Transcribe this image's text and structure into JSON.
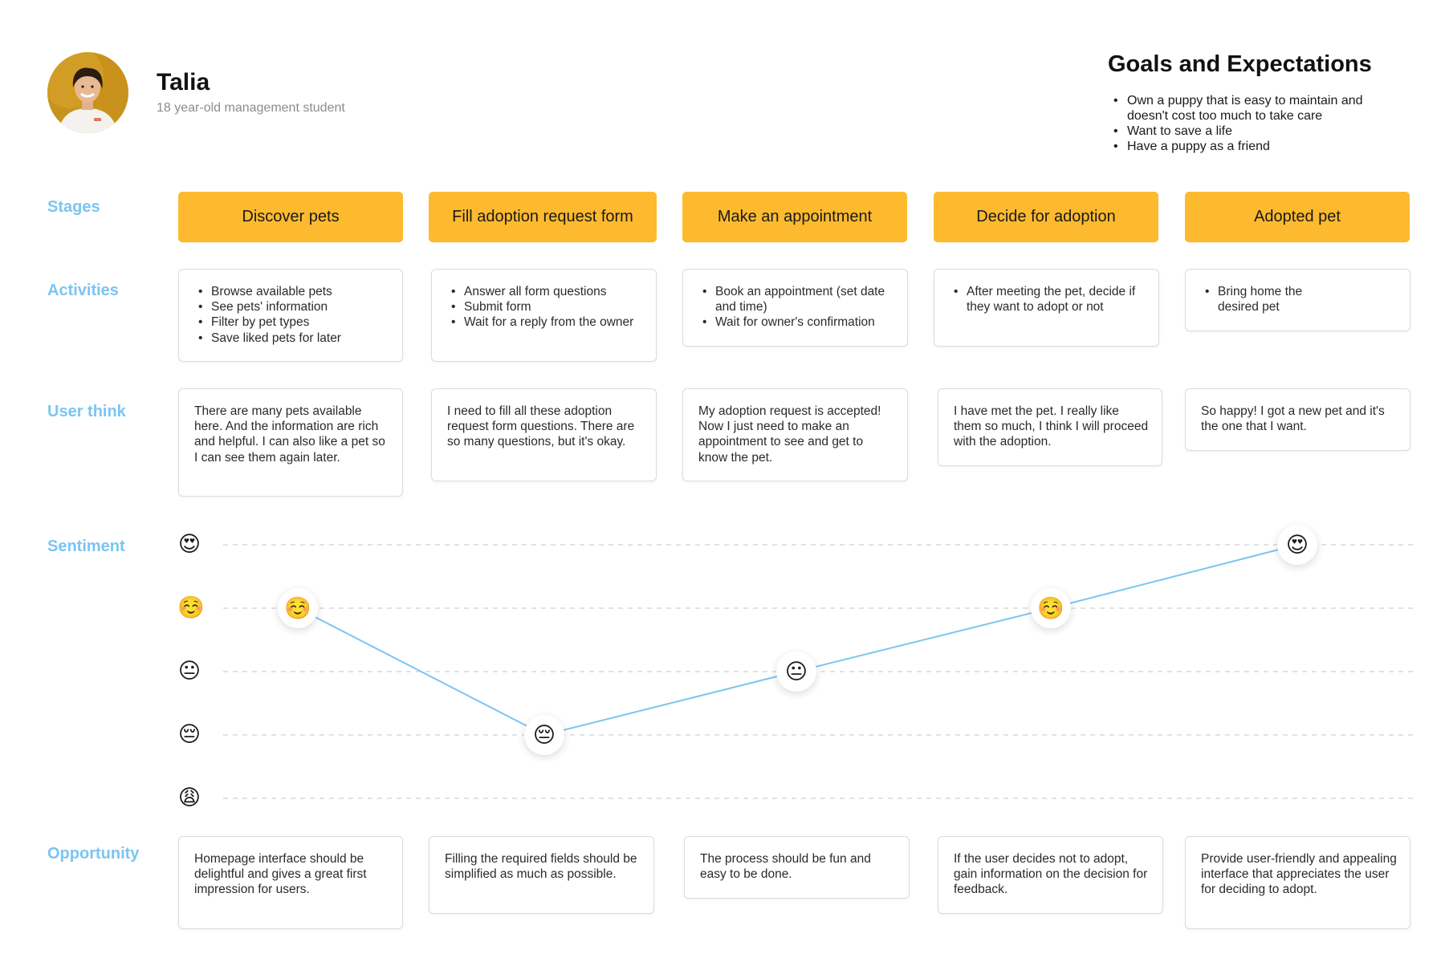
{
  "persona": {
    "name": "Talia",
    "description": "18 year-old management student",
    "avatar": "avatar-photo"
  },
  "goals": {
    "title": "Goals and Expectations",
    "items": [
      "Own a puppy that is easy to maintain and doesn't cost too much to take care",
      "Want to save a life",
      "Have a puppy as a friend"
    ]
  },
  "row_labels": {
    "stages": "Stages",
    "activities": "Activities",
    "user_think": "User think",
    "sentiment": "Sentiment",
    "opportunity": "Opportunity"
  },
  "stages": [
    "Discover pets",
    "Fill adoption request form",
    "Make an appointment",
    "Decide for adoption",
    "Adopted pet"
  ],
  "activities": [
    [
      "Browse available pets",
      "See pets' information",
      "Filter by pet types",
      "Save liked pets for later"
    ],
    [
      "Answer all form questions",
      "Submit form",
      "Wait for a reply from the owner"
    ],
    [
      "Book an appointment (set date and time)",
      "Wait for owner's confirmation"
    ],
    [
      "After meeting the pet, decide if they want to adopt or not"
    ],
    [
      "Bring home the desired pet"
    ]
  ],
  "user_think": [
    "There are many pets available here. And the information are rich and helpful. I can also like a pet so I can see them again later.",
    "I need to fill all these adoption request form questions. There are so many questions, but it's okay.",
    "My adoption request is accepted! Now I just need to make an appointment to see and get to know the pet.",
    "I have met the pet. I really like them so much, I think I will proceed with the adoption.",
    "So happy! I got a new pet and it's the one that I want."
  ],
  "opportunity": [
    "Homepage interface should be delightful and gives a great first impression for users.",
    "Filling the required fields should be simplified as much as possible.",
    "The process should be fun and easy to be done.",
    "If the user decides not to adopt, gain information on the decision for feedback.",
    "Provide user-friendly and appealing interface that appreciates the user for deciding to adopt."
  ],
  "chart_data": {
    "type": "line",
    "categories": [
      "Discover pets",
      "Fill adoption request form",
      "Make an appointment",
      "Decide for adoption",
      "Adopted pet"
    ],
    "scale": [
      {
        "level": 5,
        "emoji": "😍"
      },
      {
        "level": 4,
        "emoji": "☺️"
      },
      {
        "level": 3,
        "emoji": "😐"
      },
      {
        "level": 2,
        "emoji": "😔"
      },
      {
        "level": 1,
        "emoji": "😩"
      }
    ],
    "values": [
      4,
      2,
      3,
      4,
      5
    ],
    "ylim": [
      1,
      5
    ],
    "grid": true,
    "line_color": "#7cc4f2",
    "grid_color": "#d9d9d9"
  },
  "colors": {
    "stage_fill": "#fdba2e",
    "label_blue": "#7cc4f2",
    "card_border": "#dcdcdc"
  }
}
